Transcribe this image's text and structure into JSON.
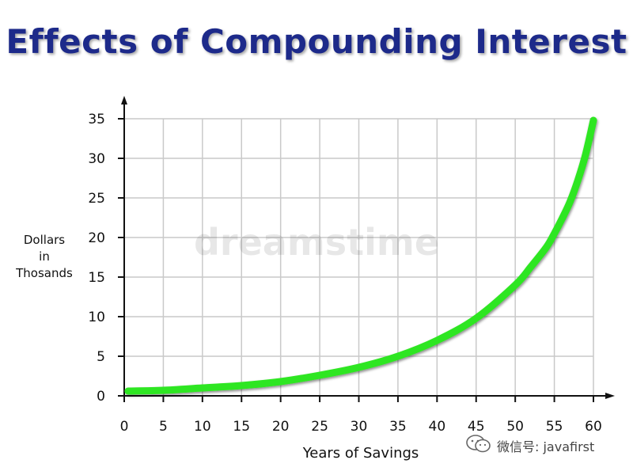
{
  "colors": {
    "line": "#2ee620",
    "title": "#1d2a8a",
    "grid": "#c9c9c9",
    "axis": "#111111"
  },
  "watermark": "dreamstime",
  "badge": {
    "icon": "wechat-icon",
    "text": "微信号: javafirst"
  },
  "chart_data": {
    "type": "line",
    "title": "Effects of Compounding Interest",
    "xlabel": "Years of Savings",
    "ylabel_lines": [
      "Dollars",
      "in",
      "Thosands"
    ],
    "xlim": [
      0,
      60
    ],
    "ylim": [
      0,
      35
    ],
    "x_ticks": [
      0,
      5,
      10,
      15,
      20,
      25,
      30,
      35,
      40,
      45,
      50,
      55,
      60
    ],
    "y_ticks": [
      0,
      5,
      10,
      15,
      20,
      25,
      30,
      35
    ],
    "grid": true,
    "legend": "none",
    "series": [
      {
        "x": [
          0.5,
          5,
          10,
          15,
          20,
          25,
          30,
          35,
          40,
          45,
          50,
          52,
          54,
          55,
          56,
          57,
          58,
          59,
          60
        ],
        "y": [
          0.6,
          0.7,
          1.0,
          1.3,
          1.8,
          2.6,
          3.6,
          5.0,
          7.0,
          9.8,
          14.0,
          16.3,
          18.8,
          20.5,
          22.4,
          24.5,
          27.2,
          30.5,
          34.8
        ]
      }
    ]
  }
}
